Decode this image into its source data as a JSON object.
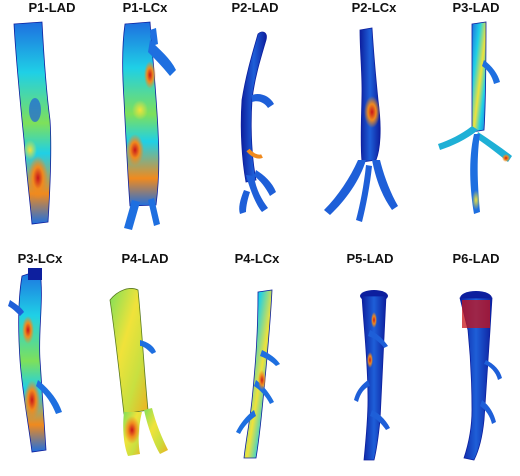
{
  "figure": {
    "colormap": [
      "#0d1f9e",
      "#1e6fe0",
      "#1fd0e6",
      "#7ee05a",
      "#f0e23a",
      "#f08a1e",
      "#c8141a"
    ],
    "rows": [
      {
        "panels": [
          {
            "label": "P1-LAD",
            "vessel": "coronary-vessel"
          },
          {
            "label": "P1-LCx",
            "vessel": "coronary-vessel"
          },
          {
            "label": "P2-LAD",
            "vessel": "coronary-vessel"
          },
          {
            "label": "P2-LCx",
            "vessel": "coronary-vessel"
          },
          {
            "label": "P3-LAD",
            "vessel": "coronary-vessel"
          }
        ]
      },
      {
        "panels": [
          {
            "label": "P3-LCx",
            "vessel": "coronary-vessel"
          },
          {
            "label": "P4-LAD",
            "vessel": "coronary-vessel"
          },
          {
            "label": "P4-LCx",
            "vessel": "coronary-vessel"
          },
          {
            "label": "P5-LAD",
            "vessel": "coronary-vessel"
          },
          {
            "label": "P6-LAD",
            "vessel": "coronary-vessel"
          }
        ]
      }
    ]
  }
}
